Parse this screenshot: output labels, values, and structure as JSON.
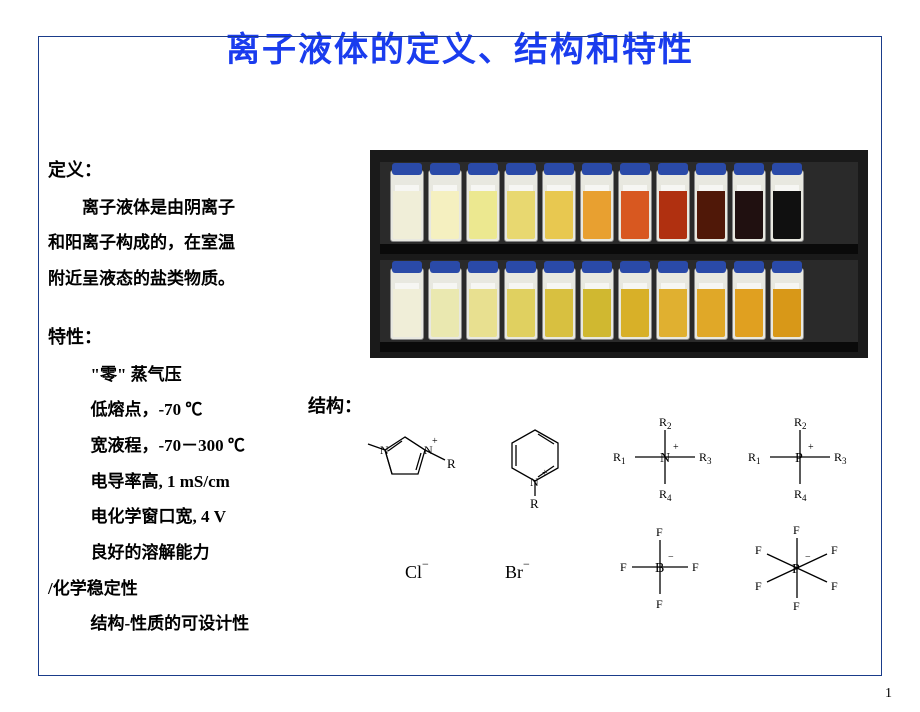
{
  "title": "离子液体的定义、结构和特性",
  "definition": {
    "heading": "定义：",
    "line1": "离子液体是由阴离子",
    "line2": "和阳离子构成的，在室温",
    "line3": "附近呈液态的盐类物质。"
  },
  "properties": {
    "heading": "特性：",
    "items": [
      "\"零\" 蒸气压",
      "低熔点，-70 ℃",
      "宽液程，-70－300 ℃",
      "电导率高, 1 mS/cm",
      "电化学窗口宽, 4 V",
      "良好的溶解能力"
    ],
    "line_stability": "/化学稳定性",
    "line_design": "结构-性质的可设计性"
  },
  "structure_label": "结构：",
  "photo": {
    "top_row_colors": [
      "#f0eed8",
      "#f5f0c0",
      "#ece890",
      "#e8d870",
      "#e8c850",
      "#e8a030",
      "#d85820",
      "#b03010",
      "#501808",
      "#201010",
      "#101010"
    ],
    "bot_row_colors": [
      "#f0eed8",
      "#eae8b0",
      "#e8e090",
      "#e0d060",
      "#d8c040",
      "#d0b830",
      "#d8b028",
      "#e0b030",
      "#e0a828",
      "#e0a020",
      "#d89818"
    ],
    "cap_color": "#2a4aa8",
    "shelf_color": "#0a0a0a"
  },
  "structures": {
    "cations": [
      {
        "name": "imidazolium",
        "label_r": "R"
      },
      {
        "name": "pyridinium",
        "label_r": "R"
      },
      {
        "name": "ammonium",
        "center": "N",
        "subs": [
          "R₁",
          "R₂",
          "R₃",
          "R₄"
        ]
      },
      {
        "name": "phosphonium",
        "center": "P",
        "subs": [
          "R₁",
          "R₂",
          "R₃",
          "R₄"
        ]
      }
    ],
    "anions": [
      {
        "text": "Cl",
        "charge": "−"
      },
      {
        "text": "Br",
        "charge": "−"
      },
      {
        "name": "BF4",
        "center": "B",
        "ligand": "F"
      },
      {
        "name": "PF6",
        "center": "P",
        "ligand": "F"
      }
    ]
  },
  "page_number": "1"
}
